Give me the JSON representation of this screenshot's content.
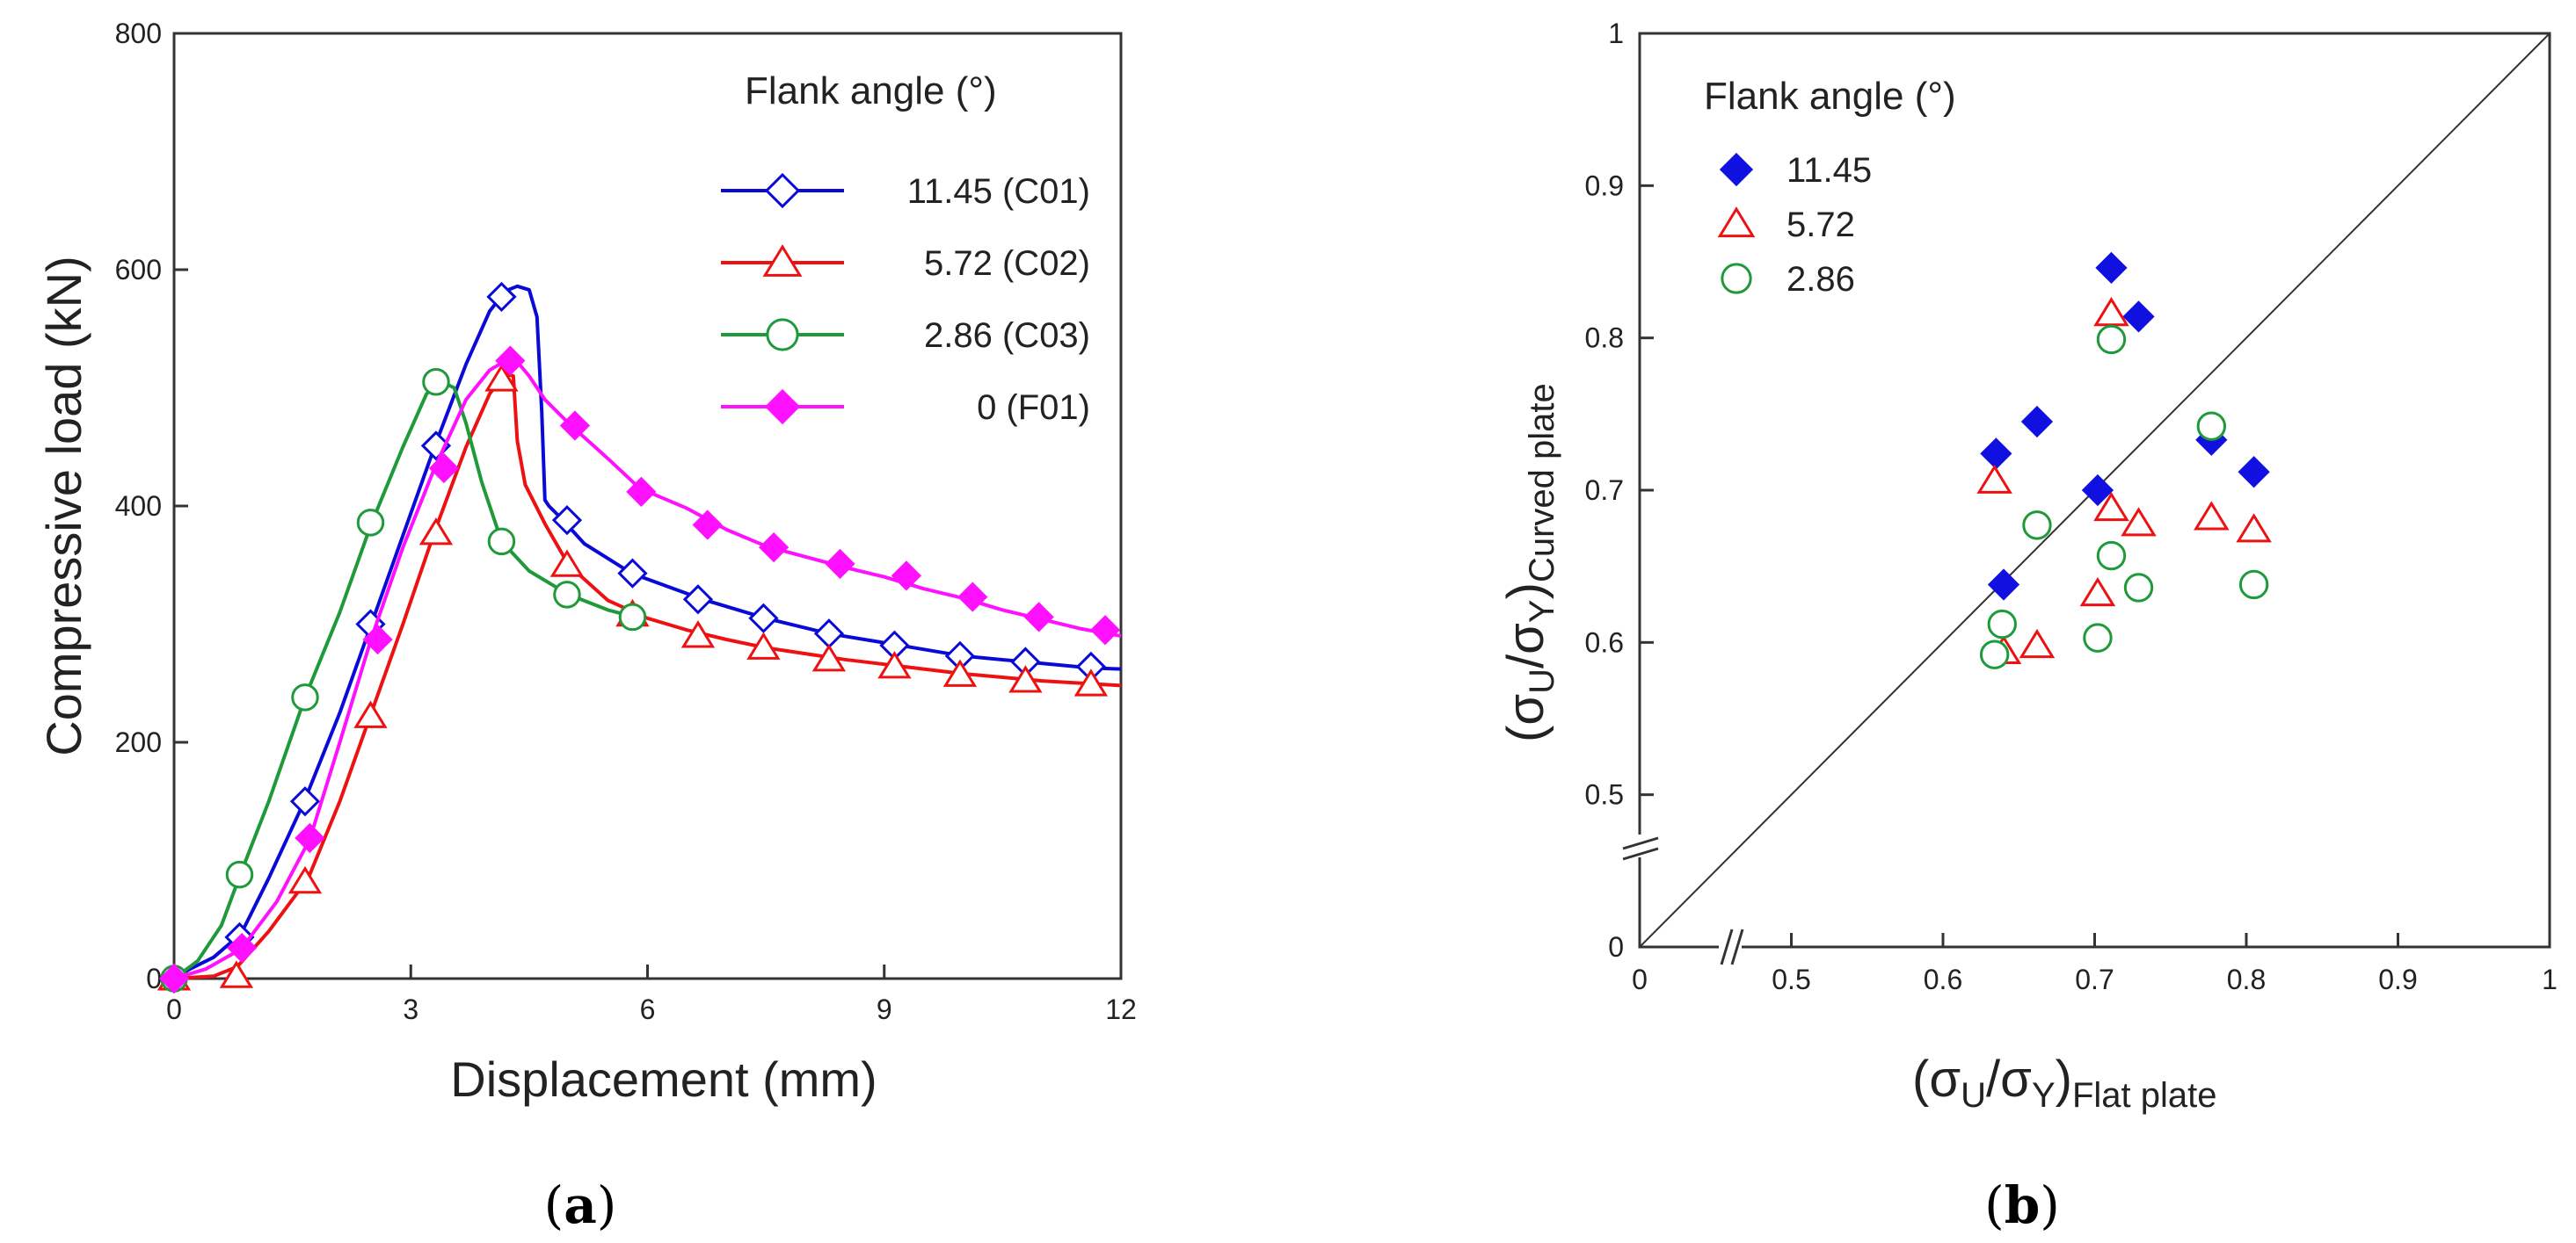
{
  "chart_data": [
    {
      "panel_label": "(a)",
      "label_prefix": "(",
      "label_letter": "a",
      "label_suffix": ")",
      "type": "line",
      "xlabel": "Displacement (mm)",
      "ylabel": "Compressive load (kN)",
      "xlim": [
        0,
        12
      ],
      "ylim": [
        0,
        800
      ],
      "xticks": [
        0,
        3,
        6,
        9,
        12
      ],
      "yticks": [
        0,
        200,
        400,
        600,
        800
      ],
      "legend_title": "Flank angle (°)",
      "legend_position": "top-right",
      "series": [
        {
          "name": "11.45 (C01)",
          "color": "#0a0ad8",
          "marker": "diamond-open",
          "x": [
            0,
            0.2,
            0.5,
            0.85,
            1.2,
            1.65,
            2.1,
            2.5,
            2.9,
            3.3,
            3.7,
            4.0,
            4.2,
            4.35,
            4.5,
            4.6,
            4.66,
            4.7,
            4.75,
            4.9,
            5.2,
            5.8,
            6.7,
            7.5,
            8.3,
            9.2,
            10.0,
            10.8,
            11.6,
            12.0
          ],
          "y": [
            0,
            8,
            18,
            38,
            85,
            150,
            225,
            300,
            375,
            450,
            520,
            565,
            582,
            586,
            583,
            560,
            480,
            405,
            400,
            390,
            368,
            343,
            321,
            305,
            292,
            282,
            273,
            268,
            263,
            262
          ],
          "markers_x": [
            0,
            0.83,
            1.66,
            2.49,
            3.32,
            4.15,
            4.98,
            5.81,
            6.64,
            7.47,
            8.3,
            9.13,
            9.96,
            10.79,
            11.62
          ],
          "markers_y": [
            0,
            35,
            150,
            300,
            451,
            577,
            388,
            343,
            321,
            305,
            292,
            282,
            273,
            268,
            264
          ]
        },
        {
          "name": "5.72 (C02)",
          "color": "#ee1111",
          "marker": "triangle-open",
          "x": [
            0,
            0.5,
            0.8,
            1.2,
            1.7,
            2.1,
            2.5,
            2.9,
            3.3,
            3.7,
            4.0,
            4.2,
            4.3,
            4.35,
            4.45,
            4.7,
            5.0,
            5.5,
            6.0,
            6.5,
            7.0,
            7.5,
            8.0,
            8.5,
            9.0,
            9.5,
            10.0,
            10.5,
            11.0,
            11.5,
            12.0
          ],
          "y": [
            0,
            2,
            10,
            40,
            85,
            150,
            225,
            300,
            378,
            450,
            495,
            512,
            510,
            455,
            418,
            385,
            350,
            320,
            305,
            295,
            287,
            280,
            275,
            270,
            266,
            262,
            258,
            255,
            252,
            250,
            248
          ],
          "markers_x": [
            0,
            0.79,
            1.66,
            2.49,
            3.32,
            4.15,
            4.98,
            5.81,
            6.64,
            7.47,
            8.3,
            9.13,
            9.96,
            10.79,
            11.62
          ],
          "markers_y": [
            0,
            2,
            82,
            222,
            377,
            507,
            350,
            308,
            290,
            280,
            270,
            264,
            257,
            252,
            249
          ]
        },
        {
          "name": "2.86 (C03)",
          "color": "#1f9a3a",
          "marker": "circle-open",
          "x": [
            0,
            0.3,
            0.6,
            0.85,
            1.2,
            1.66,
            2.1,
            2.5,
            2.9,
            3.2,
            3.4,
            3.55,
            3.7,
            3.9,
            4.15,
            4.5,
            5.0,
            5.5,
            5.9
          ],
          "y": [
            0,
            15,
            45,
            90,
            150,
            238,
            310,
            385,
            450,
            495,
            505,
            500,
            470,
            420,
            370,
            345,
            325,
            312,
            305
          ],
          "markers_x": [
            0,
            0.83,
            1.66,
            2.49,
            3.32,
            4.15,
            4.98,
            5.81
          ],
          "markers_y": [
            0,
            88,
            238,
            386,
            505,
            370,
            325,
            306
          ]
        },
        {
          "name": "0  (F01)",
          "color": "#ff10ff",
          "marker": "diamond-filled",
          "x": [
            0,
            0.4,
            0.85,
            1.3,
            1.72,
            2.1,
            2.5,
            2.9,
            3.3,
            3.7,
            4.0,
            4.2,
            4.35,
            4.5,
            4.7,
            5.0,
            5.5,
            5.9,
            6.5,
            7.0,
            7.5,
            8.0,
            8.5,
            9.0,
            9.5,
            10.0,
            10.5,
            11.0,
            11.5,
            12.0
          ],
          "y": [
            0,
            8,
            25,
            65,
            118,
            200,
            288,
            365,
            432,
            490,
            515,
            523,
            522,
            510,
            490,
            470,
            440,
            415,
            398,
            380,
            366,
            357,
            348,
            340,
            330,
            322,
            312,
            304,
            296,
            290
          ],
          "markers_x": [
            0,
            0.86,
            1.72,
            2.58,
            3.42,
            4.26,
            5.08,
            5.92,
            6.76,
            7.6,
            8.44,
            9.28,
            10.12,
            10.96,
            11.8
          ],
          "markers_y": [
            0,
            26,
            119,
            287,
            432,
            523,
            468,
            412,
            384,
            365,
            351,
            341,
            323,
            306,
            295
          ]
        }
      ]
    },
    {
      "panel_label": "(b)",
      "label_prefix": "(",
      "label_letter": "b",
      "label_suffix": ")",
      "type": "scatter",
      "xlabel_main": "(σ",
      "xlabel_sub1": "U",
      "xlabel_mid": "/σ",
      "xlabel_sub2": "Y",
      "xlabel_close": ")",
      "xlabel_subscript": "Flat plate",
      "ylabel_main": "(σ",
      "ylabel_sub1": "U",
      "ylabel_mid": "/σ",
      "ylabel_sub2": "Y",
      "ylabel_close": ")",
      "ylabel_subscript": "Curved plate",
      "xlim": [
        0.4,
        1
      ],
      "ylim": [
        0.4,
        1
      ],
      "axis_break": "0 to 0.4 (broken axis)",
      "x_tick_labels": [
        "0",
        "0.5",
        "0.6",
        "0.7",
        "0.8",
        "0.9",
        "1"
      ],
      "x_tick_values": [
        0.4,
        0.5,
        0.6,
        0.7,
        0.8,
        0.9,
        1.0
      ],
      "y_tick_labels": [
        "0",
        "0.5",
        "0.6",
        "0.7",
        "0.8",
        "0.9",
        "1"
      ],
      "y_tick_values": [
        0.4,
        0.5,
        0.6,
        0.7,
        0.8,
        0.9,
        1.0
      ],
      "diagonal": "y = x",
      "legend_title": "Flank angle (°)",
      "legend_position": "top-left",
      "series": [
        {
          "name": "11.45",
          "color": "#1010e0",
          "marker": "diamond-filled",
          "x": [
            0.635,
            0.662,
            0.64,
            0.702,
            0.711,
            0.729,
            0.777,
            0.805
          ],
          "y": [
            0.724,
            0.745,
            0.638,
            0.7,
            0.846,
            0.814,
            0.733,
            0.712
          ]
        },
        {
          "name": "5.72",
          "color": "#ee1111",
          "marker": "triangle-open",
          "x": [
            0.634,
            0.64,
            0.662,
            0.702,
            0.711,
            0.711,
            0.729,
            0.777,
            0.805
          ],
          "y": [
            0.706,
            0.594,
            0.598,
            0.632,
            0.816,
            0.688,
            0.678,
            0.682,
            0.674
          ],
          "label_pad": [
            "",
            "",
            ""
          ]
        },
        {
          "name": "2.86",
          "color": "#1f9a3a",
          "marker": "circle-open",
          "x": [
            0.634,
            0.639,
            0.662,
            0.702,
            0.711,
            0.711,
            0.729,
            0.777,
            0.805
          ],
          "y": [
            0.592,
            0.612,
            0.677,
            0.603,
            0.799,
            0.657,
            0.636,
            0.742,
            0.638
          ]
        }
      ]
    }
  ]
}
